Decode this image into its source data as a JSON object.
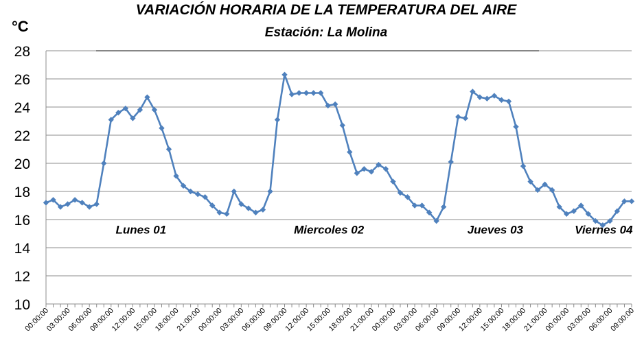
{
  "chart_data": {
    "type": "line",
    "title": "VARIACIÓN HORARIA DE LA TEMPERATURA DEL AIRE",
    "subtitle": "Estación: La Molina",
    "ylabel": "°C",
    "ylim": [
      10,
      28
    ],
    "yticks": [
      "10",
      "12",
      "14",
      "16",
      "18",
      "20",
      "22",
      "24",
      "26",
      "28"
    ],
    "grid": true,
    "line_color": "#4F81BD",
    "x": [
      "00:00:00",
      "01:00:00",
      "02:00:00",
      "03:00:00",
      "04:00:00",
      "05:00:00",
      "06:00:00",
      "07:00:00",
      "08:00:00",
      "09:00:00",
      "10:00:00",
      "11:00:00",
      "12:00:00",
      "13:00:00",
      "14:00:00",
      "15:00:00",
      "16:00:00",
      "17:00:00",
      "18:00:00",
      "19:00:00",
      "20:00:00",
      "21:00:00",
      "22:00:00",
      "23:00:00",
      "00:00:00",
      "01:00:00",
      "02:00:00",
      "03:00:00",
      "04:00:00",
      "05:00:00",
      "06:00:00",
      "07:00:00",
      "08:00:00",
      "09:00:00",
      "10:00:00",
      "11:00:00",
      "12:00:00",
      "13:00:00",
      "14:00:00",
      "15:00:00",
      "16:00:00",
      "17:00:00",
      "18:00:00",
      "19:00:00",
      "20:00:00",
      "21:00:00",
      "22:00:00",
      "23:00:00",
      "00:00:00",
      "01:00:00",
      "02:00:00",
      "03:00:00",
      "04:00:00",
      "05:00:00",
      "06:00:00",
      "07:00:00",
      "08:00:00",
      "09:00:00",
      "10:00:00",
      "11:00:00",
      "12:00:00",
      "13:00:00",
      "14:00:00",
      "15:00:00",
      "16:00:00",
      "17:00:00",
      "18:00:00",
      "19:00:00",
      "20:00:00",
      "21:00:00",
      "22:00:00",
      "23:00:00",
      "00:00:00",
      "01:00:00",
      "02:00:00",
      "03:00:00",
      "04:00:00",
      "05:00:00",
      "06:00:00",
      "07:00:00",
      "08:00:00",
      "09:00:00"
    ],
    "xtick_labels": [
      "00:00:00",
      "03:00:00",
      "06:00:00",
      "09:00:00",
      "12:00:00",
      "15:00:00",
      "18:00:00",
      "21:00:00",
      "00:00:00",
      "03:00:00",
      "06:00:00",
      "09:00:00",
      "12:00:00",
      "15:00:00",
      "18:00:00",
      "21:00:00",
      "00:00:00",
      "03:00:00",
      "06:00:00",
      "09:00:00",
      "12:00:00",
      "15:00:00",
      "18:00:00",
      "21:00:00",
      "00:00:00",
      "03:00:00",
      "06:00:00",
      "09:00:00"
    ],
    "values": [
      17.2,
      17.4,
      16.9,
      17.1,
      17.4,
      17.2,
      16.9,
      17.1,
      20.0,
      23.1,
      23.6,
      23.9,
      23.2,
      23.8,
      24.7,
      23.8,
      22.5,
      21.0,
      19.1,
      18.4,
      18.0,
      17.8,
      17.6,
      17.0,
      16.5,
      16.4,
      18.0,
      17.1,
      16.8,
      16.5,
      16.7,
      18.0,
      23.1,
      26.3,
      24.9,
      25.0,
      25.0,
      25.0,
      25.0,
      24.1,
      24.2,
      22.7,
      20.8,
      19.3,
      19.6,
      19.4,
      19.9,
      19.6,
      18.7,
      17.9,
      17.6,
      17.0,
      17.0,
      16.5,
      15.9,
      16.9,
      20.1,
      23.3,
      23.2,
      25.1,
      24.7,
      24.6,
      24.8,
      24.5,
      24.4,
      22.6,
      19.8,
      18.7,
      18.1,
      18.5,
      18.1,
      16.9,
      16.4,
      16.6,
      17.0,
      16.4,
      15.9,
      15.6,
      15.9,
      16.6,
      17.3,
      17.3
    ],
    "annotations": [
      {
        "text": "Lunes 01",
        "x_index": 12
      },
      {
        "text": "Miercoles 02",
        "x_index": 38
      },
      {
        "text": "Jueves 03",
        "x_index": 61
      },
      {
        "text": "Viernes 04",
        "x_index": 76
      }
    ]
  }
}
